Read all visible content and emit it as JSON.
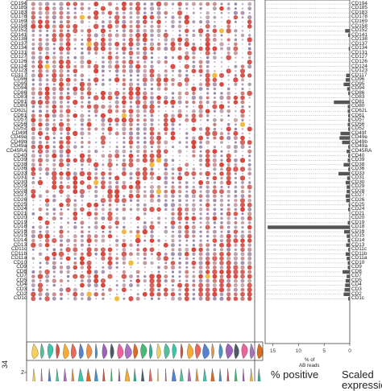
{
  "chart_data": {
    "type": "scatter",
    "subtype": "dot-plot-with-bar-chart",
    "rows": [
      "CD194",
      "CD185",
      "CD183",
      "CD178",
      "CD169",
      "CD158",
      "CD152",
      "CD141",
      "CD138",
      "CD137",
      "CD134",
      "CD131",
      "CD127",
      "CD126",
      "CD124",
      "CD123",
      "CD117",
      "CD96",
      "CD95",
      "CD94",
      "CD86",
      "CD83",
      "CD81",
      "CD80",
      "CD62L",
      "CD61",
      "CD57",
      "CD56",
      "CD52",
      "CD49f",
      "CD49e",
      "CD49b",
      "CD49a",
      "CD45RA",
      "CD40",
      "CD39",
      "CD38",
      "CD36",
      "CD33",
      "CD31",
      "CD30",
      "CD29",
      "CD28",
      "CD27",
      "CD26",
      "CD25",
      "CD24",
      "CD21",
      "CD20",
      "CD19",
      "CD18",
      "CD16",
      "CD15",
      "CD14",
      "CD13",
      "CD11c",
      "CD11b",
      "CD11a",
      "CD10",
      "CD9",
      "CD8",
      "CD7",
      "CD5",
      "CD4",
      "CD3",
      "CD2",
      "CD1c"
    ],
    "left_labels": [
      "CD194",
      "CD185",
      "CD183",
      "CD178",
      "CD169",
      "CD158",
      "CD152",
      "CD141",
      "CD138",
      "CD137",
      "CD134",
      "CD131",
      "CD127",
      "CD126",
      "CD124",
      "CD123",
      "CD117",
      "CD96",
      "CD95",
      "CD94",
      "CD86",
      "CD83",
      "CD81",
      "CD80",
      "CD62L",
      "CD61",
      "CD57",
      "CD56",
      "CD52",
      "CD49f",
      "CD49e",
      "CD49b",
      "CD49a",
      "CD45RA",
      "CD40",
      "CD39",
      "CD38",
      "CD36",
      "CD33",
      "CD31",
      "CD30",
      "CD29",
      "CD28",
      "CD27",
      "CD26",
      "CD25",
      "CD24",
      "CD21",
      "CD20",
      "CD19",
      "CD18",
      "CD16",
      "CD15",
      "CD14",
      "CD13",
      "CD11c",
      "CD11b",
      "CD11a",
      "CD10",
      "CD9",
      "CD8",
      "CD7",
      "CD5",
      "CD4",
      "CD3",
      "CD2",
      "CD1c"
    ],
    "bar_values": [
      0,
      0,
      0,
      0,
      0,
      0,
      0.9,
      0.3,
      0,
      0,
      0.2,
      0,
      0,
      0,
      0,
      0,
      0.7,
      0.8,
      1.2,
      0.5,
      0.3,
      0,
      3.1,
      0.4,
      0.4,
      0.3,
      0.3,
      0.4,
      0.3,
      1.8,
      2.0,
      1.5,
      0.3,
      0.6,
      0.3,
      0.4,
      1.2,
      0.3,
      2.2,
      0.5,
      0.8,
      0.6,
      0.6,
      0.8,
      0.7,
      0.2,
      0.3,
      0,
      0,
      0.4,
      16.0,
      1.1,
      0.6,
      0.4,
      0.7,
      0.3,
      0.8,
      0.6,
      0.4,
      0.4,
      1.4,
      0.6,
      0.8,
      0.9,
      1.0,
      1.2,
      0.3
    ],
    "bar_xlim": [
      0,
      16.5
    ],
    "bar_ticks": [
      "15",
      "10",
      "5",
      "0"
    ],
    "bar_xlabel": [
      "% of",
      "AB reads"
    ],
    "n_clusters": 32,
    "colors": {
      "high": "#d62b1f",
      "mid": "#bfa2a8",
      "low": "#6a63a8",
      "highlight": "#f0b429"
    },
    "violin_colors": [
      "#f5c542",
      "#e8478b",
      "#3a6cc7",
      "#35b48a",
      "#9b59b6",
      "#e67e22",
      "#1abc9c",
      "#d35400",
      "#2980b9",
      "#c0392b",
      "#27ae60",
      "#8e44ad",
      "#f39c12",
      "#16a085",
      "#2c3e50",
      "#e74c3c"
    ],
    "violin_axis_labels": [
      "2",
      "34"
    ],
    "legend": {
      "percent_label": "% positive",
      "scaled_label": "Scaled",
      "scaled_label2": "expression"
    }
  }
}
